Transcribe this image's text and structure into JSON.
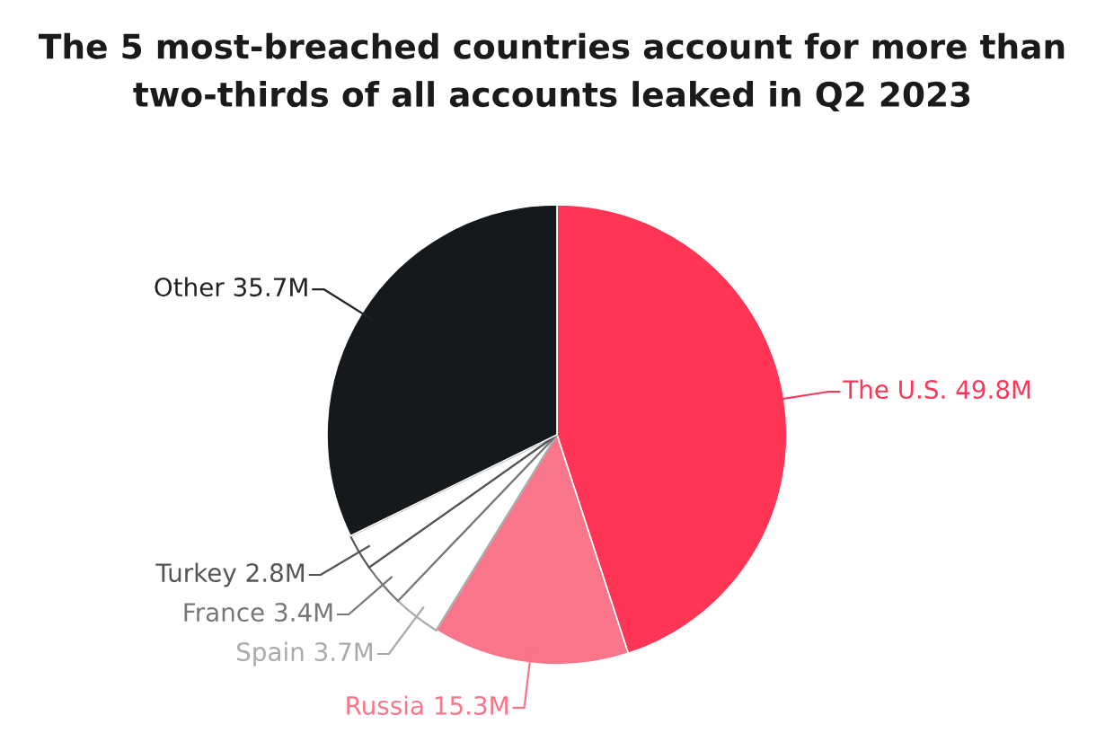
{
  "chart_data": {
    "type": "pie",
    "title": "The 5 most-breached countries account for more than\ntwo-thirds of all accounts leaked in Q2 2023",
    "categories": [
      "The U.S.",
      "Russia",
      "Spain",
      "France",
      "Turkey",
      "Other"
    ],
    "values": [
      49.8,
      15.3,
      3.7,
      3.4,
      2.8,
      35.7
    ],
    "value_labels": [
      "49.8M",
      "15.3M",
      "3.7M",
      "3.4M",
      "2.8M",
      "35.7M"
    ],
    "colors": [
      "#ff3556",
      "#f9758a",
      "#ffffff",
      "#ffffff",
      "#ffffff",
      "#16191c"
    ],
    "legend": false
  }
}
